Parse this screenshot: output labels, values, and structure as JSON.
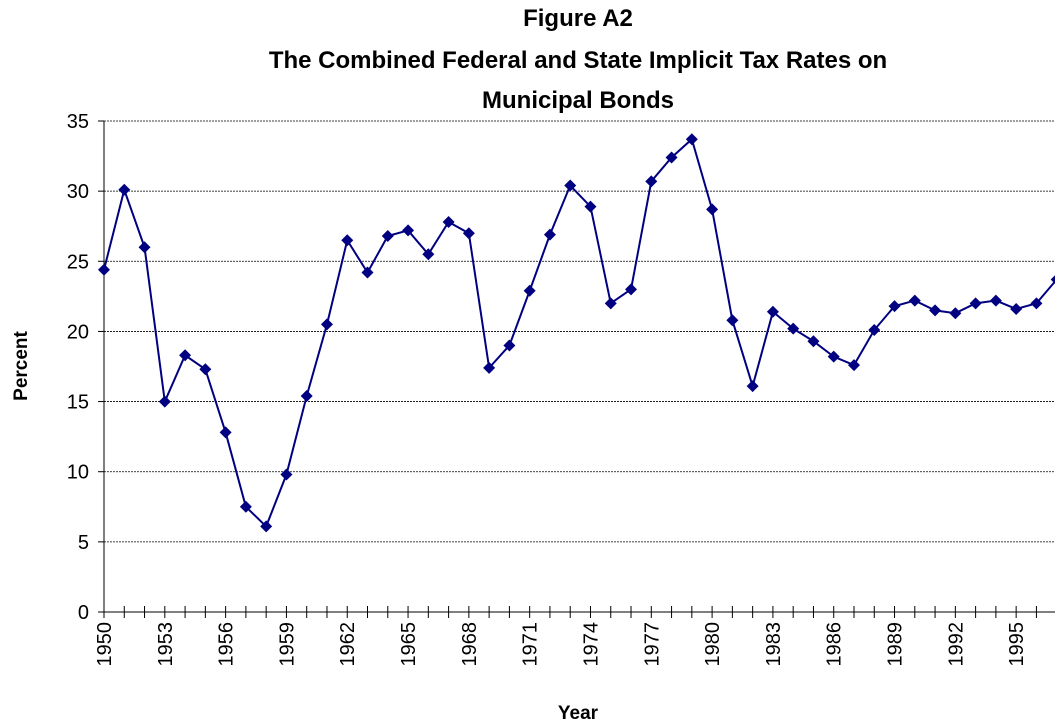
{
  "chart_data": {
    "type": "line",
    "title": [
      "Figure A2",
      "The Combined Federal and State Implicit Tax Rates on",
      "Municipal Bonds"
    ],
    "x_label": "Year",
    "y_label": "Percent",
    "categories": [
      "1950",
      null,
      null,
      "1953",
      null,
      null,
      "1956",
      null,
      null,
      "1959",
      null,
      null,
      "1962",
      null,
      null,
      "1965",
      null,
      null,
      "1968",
      null,
      null,
      "1971",
      null,
      null,
      "1974",
      null,
      null,
      "1977",
      null,
      null,
      "1980",
      null,
      null,
      "1983",
      null,
      null,
      "1986",
      null,
      null,
      "1989",
      null,
      null,
      "1992",
      null,
      null,
      "1995",
      null,
      null
    ],
    "series": [
      {
        "color": "#000080",
        "values": [
          24.4,
          30.1,
          26.0,
          15.0,
          18.3,
          17.3,
          12.8,
          7.5,
          6.1,
          9.8,
          15.4,
          20.5,
          26.5,
          24.2,
          26.8,
          27.2,
          25.5,
          27.8,
          27.0,
          17.4,
          19.0,
          22.9,
          26.9,
          30.4,
          28.9,
          22.0,
          23.0,
          30.7,
          32.4,
          33.7,
          28.7,
          20.8,
          16.1,
          21.4,
          20.2,
          19.3,
          18.2,
          17.6,
          20.1,
          21.8,
          22.2,
          21.5,
          21.3,
          22.0,
          22.2,
          21.6,
          22.0,
          23.7
        ]
      }
    ],
    "ylim": [
      0,
      35
    ],
    "yticks": [
      0,
      5,
      10,
      15,
      20,
      25,
      30,
      35
    ],
    "grid": true
  }
}
